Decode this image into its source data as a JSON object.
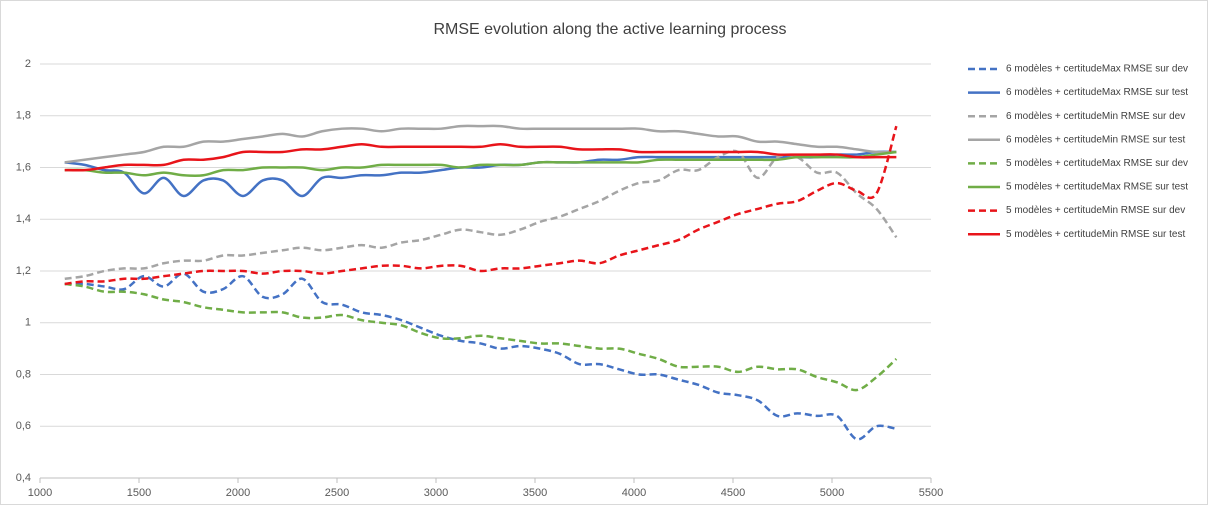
{
  "chart_data": {
    "type": "line",
    "title": "RMSE evolution along the active learning process",
    "x": [
      1125,
      1225,
      1325,
      1425,
      1525,
      1625,
      1725,
      1825,
      1925,
      2025,
      2125,
      2225,
      2325,
      2425,
      2525,
      2625,
      2725,
      2825,
      2925,
      3025,
      3125,
      3225,
      3325,
      3425,
      3525,
      3625,
      3725,
      3825,
      3925,
      4025,
      4125,
      4225,
      4325,
      4425,
      4525,
      4625,
      4725,
      4825,
      4925,
      5025,
      5125,
      5225,
      5325
    ],
    "series": [
      {
        "name": "6 modèles + certitudeMax RMSE sur dev",
        "color": "#4472c4",
        "dashed": true,
        "values": [
          1.15,
          1.15,
          1.14,
          1.13,
          1.18,
          1.14,
          1.19,
          1.12,
          1.13,
          1.18,
          1.1,
          1.11,
          1.17,
          1.08,
          1.07,
          1.04,
          1.03,
          1.01,
          0.98,
          0.95,
          0.93,
          0.92,
          0.9,
          0.91,
          0.9,
          0.88,
          0.84,
          0.84,
          0.82,
          0.8,
          0.8,
          0.78,
          0.76,
          0.73,
          0.72,
          0.7,
          0.64,
          0.65,
          0.64,
          0.64,
          0.55,
          0.6,
          0.59
        ]
      },
      {
        "name": "6 modèles + certitudeMax RMSE sur test",
        "color": "#4472c4",
        "dashed": false,
        "values": [
          1.62,
          1.61,
          1.59,
          1.58,
          1.5,
          1.56,
          1.49,
          1.55,
          1.55,
          1.49,
          1.55,
          1.55,
          1.49,
          1.56,
          1.56,
          1.57,
          1.57,
          1.58,
          1.58,
          1.59,
          1.6,
          1.6,
          1.61,
          1.61,
          1.62,
          1.62,
          1.62,
          1.63,
          1.63,
          1.64,
          1.64,
          1.64,
          1.64,
          1.64,
          1.64,
          1.64,
          1.64,
          1.64,
          1.64,
          1.65,
          1.65,
          1.66,
          1.66
        ]
      },
      {
        "name": "6 modèles + certitudeMin RMSE sur dev",
        "color": "#a5a5a5",
        "dashed": true,
        "values": [
          1.17,
          1.18,
          1.2,
          1.21,
          1.21,
          1.23,
          1.24,
          1.24,
          1.26,
          1.26,
          1.27,
          1.28,
          1.29,
          1.28,
          1.29,
          1.3,
          1.29,
          1.31,
          1.32,
          1.34,
          1.36,
          1.35,
          1.34,
          1.36,
          1.39,
          1.41,
          1.44,
          1.47,
          1.51,
          1.54,
          1.55,
          1.59,
          1.59,
          1.64,
          1.66,
          1.56,
          1.64,
          1.64,
          1.58,
          1.58,
          1.5,
          1.44,
          1.33
        ]
      },
      {
        "name": "6 modèles + certitudeMin RMSE sur test",
        "color": "#a5a5a5",
        "dashed": false,
        "values": [
          1.62,
          1.63,
          1.64,
          1.65,
          1.66,
          1.68,
          1.68,
          1.7,
          1.7,
          1.71,
          1.72,
          1.73,
          1.72,
          1.74,
          1.75,
          1.75,
          1.74,
          1.75,
          1.75,
          1.75,
          1.76,
          1.76,
          1.76,
          1.75,
          1.75,
          1.75,
          1.75,
          1.75,
          1.75,
          1.75,
          1.74,
          1.74,
          1.73,
          1.72,
          1.72,
          1.7,
          1.7,
          1.69,
          1.68,
          1.68,
          1.67,
          1.66,
          1.66
        ]
      },
      {
        "name": "5 modèles + certitudeMax RMSE sur dev",
        "color": "#70ad47",
        "dashed": true,
        "values": [
          1.15,
          1.14,
          1.12,
          1.12,
          1.11,
          1.09,
          1.08,
          1.06,
          1.05,
          1.04,
          1.04,
          1.04,
          1.02,
          1.02,
          1.03,
          1.01,
          1.0,
          0.99,
          0.96,
          0.94,
          0.94,
          0.95,
          0.94,
          0.93,
          0.92,
          0.92,
          0.91,
          0.9,
          0.9,
          0.88,
          0.86,
          0.83,
          0.83,
          0.83,
          0.81,
          0.83,
          0.82,
          0.82,
          0.79,
          0.77,
          0.74,
          0.79,
          0.86
        ]
      },
      {
        "name": "5 modèles + certitudeMax RMSE sur test",
        "color": "#70ad47",
        "dashed": false,
        "values": [
          1.59,
          1.59,
          1.58,
          1.58,
          1.57,
          1.58,
          1.57,
          1.57,
          1.59,
          1.59,
          1.6,
          1.6,
          1.6,
          1.59,
          1.6,
          1.6,
          1.61,
          1.61,
          1.61,
          1.61,
          1.6,
          1.61,
          1.61,
          1.61,
          1.62,
          1.62,
          1.62,
          1.62,
          1.62,
          1.62,
          1.63,
          1.63,
          1.63,
          1.63,
          1.63,
          1.63,
          1.63,
          1.64,
          1.64,
          1.64,
          1.64,
          1.65,
          1.66
        ]
      },
      {
        "name": "5 modèles + certitudeMin RMSE sur dev",
        "color": "#e8141a",
        "dashed": true,
        "values": [
          1.15,
          1.16,
          1.16,
          1.17,
          1.17,
          1.18,
          1.19,
          1.2,
          1.2,
          1.2,
          1.19,
          1.2,
          1.2,
          1.19,
          1.2,
          1.21,
          1.22,
          1.22,
          1.21,
          1.22,
          1.22,
          1.2,
          1.21,
          1.21,
          1.22,
          1.23,
          1.24,
          1.23,
          1.26,
          1.28,
          1.3,
          1.32,
          1.36,
          1.39,
          1.42,
          1.44,
          1.46,
          1.47,
          1.51,
          1.54,
          1.51,
          1.5,
          1.76
        ]
      },
      {
        "name": "5 modèles + certitudeMin RMSE sur test",
        "color": "#e8141a",
        "dashed": false,
        "values": [
          1.59,
          1.59,
          1.6,
          1.61,
          1.61,
          1.61,
          1.63,
          1.63,
          1.64,
          1.66,
          1.66,
          1.66,
          1.67,
          1.67,
          1.68,
          1.69,
          1.68,
          1.68,
          1.68,
          1.68,
          1.68,
          1.68,
          1.69,
          1.68,
          1.68,
          1.68,
          1.67,
          1.67,
          1.67,
          1.66,
          1.66,
          1.66,
          1.66,
          1.66,
          1.66,
          1.66,
          1.65,
          1.65,
          1.65,
          1.65,
          1.64,
          1.64,
          1.64
        ]
      }
    ],
    "xlim": [
      1000,
      5500
    ],
    "xticks": [
      1000,
      1500,
      2000,
      2500,
      3000,
      3500,
      4000,
      4500,
      5000,
      5500
    ],
    "ylim": [
      0.4,
      2
    ],
    "yticks": [
      {
        "value": 0.4,
        "label": "0,4"
      },
      {
        "value": 0.6,
        "label": "0,6"
      },
      {
        "value": 0.8,
        "label": "0,8"
      },
      1,
      {
        "value": 1.2,
        "label": "1,2"
      },
      {
        "value": 1.4,
        "label": "1,4"
      },
      {
        "value": 1.6,
        "label": "1,6"
      },
      {
        "value": 1.8,
        "label": "1,8"
      },
      2
    ],
    "grid": true,
    "legend": "right"
  }
}
